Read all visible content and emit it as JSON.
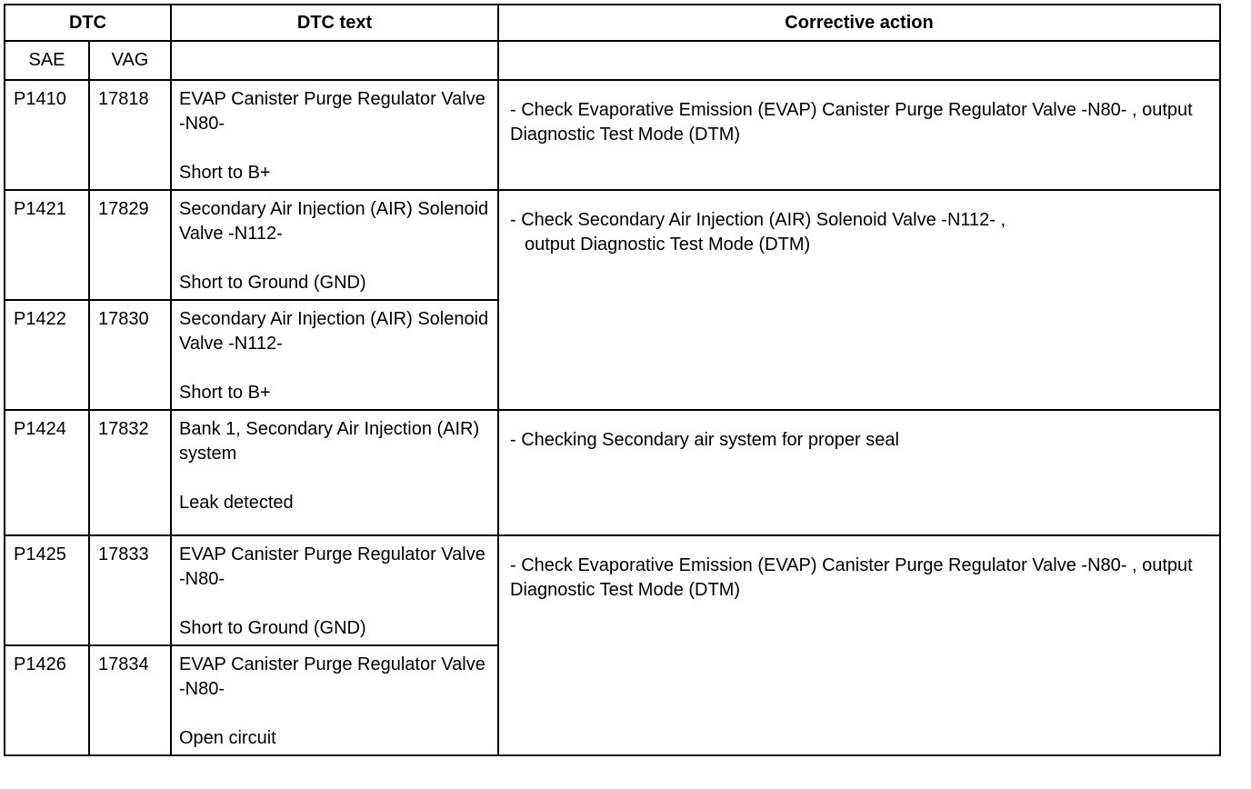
{
  "headers": {
    "dtc": "DTC",
    "dtc_text": "DTC text",
    "action": "Corrective action",
    "sae": "SAE",
    "vag": "VAG"
  },
  "rows": [
    {
      "sae": "P1410",
      "vag": "17818",
      "text": "EVAP Canister Purge Regulator Valve -N80-",
      "fault": "Short to B+"
    },
    {
      "sae": "P1421",
      "vag": "17829",
      "text": "Secondary Air Injection (AIR) Solenoid Valve -N112-",
      "fault": "Short to Ground (GND)"
    },
    {
      "sae": "P1422",
      "vag": "17830",
      "text": "Secondary Air Injection (AIR) Solenoid Valve -N112-",
      "fault": "Short to B+"
    },
    {
      "sae": "P1424",
      "vag": "17832",
      "text": "Bank 1, Secondary Air Injection (AIR) system",
      "fault": "Leak detected"
    },
    {
      "sae": "P1425",
      "vag": "17833",
      "text": "EVAP Canister Purge Regulator Valve -N80-",
      "fault": "Short to Ground (GND)"
    },
    {
      "sae": "P1426",
      "vag": "17834",
      "text": "EVAP Canister Purge Regulator Valve -N80-",
      "fault": "Open circuit"
    }
  ],
  "actions": [
    {
      "line1": "- Check Evaporative Emission (EVAP) Canister Purge Regulator Valve -N80- , output Diagnostic Test Mode (DTM)"
    },
    {
      "line1": "- Check Secondary Air Injection (AIR) Solenoid Valve -N112- ,",
      "line2": "output Diagnostic Test Mode (DTM)"
    },
    {
      "line1": "- Checking Secondary air system for proper seal"
    },
    {
      "line1": "- Check Evaporative Emission (EVAP) Canister Purge Regulator Valve -N80- , output Diagnostic Test Mode (DTM)"
    }
  ]
}
